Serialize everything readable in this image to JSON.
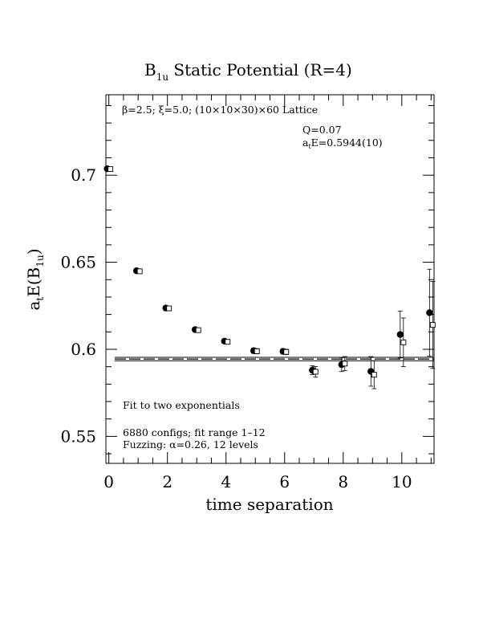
{
  "chart_data": {
    "type": "scatter",
    "title": "B",
    "title_sub": "1u",
    "title_rest": " Static Potential (R=4)",
    "xlabel": "time separation",
    "ylabel_main": "a",
    "ylabel_sub1": "t",
    "ylabel_mid": "E(B",
    "ylabel_sub2": "1u",
    "ylabel_end": ")",
    "xlim": [
      -0.1,
      11.1
    ],
    "ylim": [
      0.5345,
      0.7462
    ],
    "x_ticks": [
      0,
      2,
      4,
      6,
      8,
      10
    ],
    "y_ticks": [
      0.55,
      0.6,
      0.65,
      0.7
    ],
    "x_tick_labels": [
      "0",
      "2",
      "4",
      "6",
      "8",
      "10"
    ],
    "y_tick_labels": [
      "0.55",
      "0.6",
      "0.65",
      "0.7"
    ],
    "annotations": {
      "lattice": "β=2.5; ξ=5.0; (10×10×30)×60 Lattice",
      "q": "Q=0.07",
      "energy_pre": "a",
      "energy_sub": "t",
      "energy_post": "E=0.5944(10)",
      "fit": "Fit to two exponentials",
      "configs": "6880 configs; fit range 1–12",
      "fuzzing": "Fuzzing: α=0.26, 12 levels"
    },
    "fit": {
      "value": 0.5944,
      "error": 0.001,
      "x_range": [
        0.2,
        11.1
      ]
    },
    "series": [
      {
        "marker": "filled-circle",
        "points": [
          {
            "x": 0,
            "y": 0.7037,
            "err": 0.0008
          },
          {
            "x": 1,
            "y": 0.6451,
            "err": 0.0008
          },
          {
            "x": 2,
            "y": 0.6237,
            "err": 0.0008
          },
          {
            "x": 3,
            "y": 0.6113,
            "err": 0.001
          },
          {
            "x": 4,
            "y": 0.6047,
            "err": 0.0012
          },
          {
            "x": 5,
            "y": 0.5992,
            "err": 0.0015
          },
          {
            "x": 6,
            "y": 0.5988,
            "err": 0.0015
          },
          {
            "x": 7,
            "y": 0.588,
            "err": 0.0025
          },
          {
            "x": 8,
            "y": 0.5912,
            "err": 0.004
          },
          {
            "x": 9,
            "y": 0.5873,
            "err": 0.0085
          },
          {
            "x": 10,
            "y": 0.6085,
            "err": 0.0135
          },
          {
            "x": 11,
            "y": 0.621,
            "err": 0.025
          }
        ]
      },
      {
        "marker": "open-square",
        "points": [
          {
            "x": 0,
            "y": 0.7035,
            "err": 0.0006
          },
          {
            "x": 1,
            "y": 0.6448,
            "err": 0.0008
          },
          {
            "x": 2,
            "y": 0.6235,
            "err": 0.0008
          },
          {
            "x": 3,
            "y": 0.611,
            "err": 0.001
          },
          {
            "x": 4,
            "y": 0.6043,
            "err": 0.0012
          },
          {
            "x": 5,
            "y": 0.5989,
            "err": 0.0015
          },
          {
            "x": 6,
            "y": 0.5985,
            "err": 0.0015
          },
          {
            "x": 7,
            "y": 0.5871,
            "err": 0.003
          },
          {
            "x": 8,
            "y": 0.5918,
            "err": 0.004
          },
          {
            "x": 9,
            "y": 0.5854,
            "err": 0.008
          },
          {
            "x": 10,
            "y": 0.604,
            "err": 0.014
          },
          {
            "x": 11,
            "y": 0.614,
            "err": 0.025
          }
        ]
      }
    ]
  }
}
